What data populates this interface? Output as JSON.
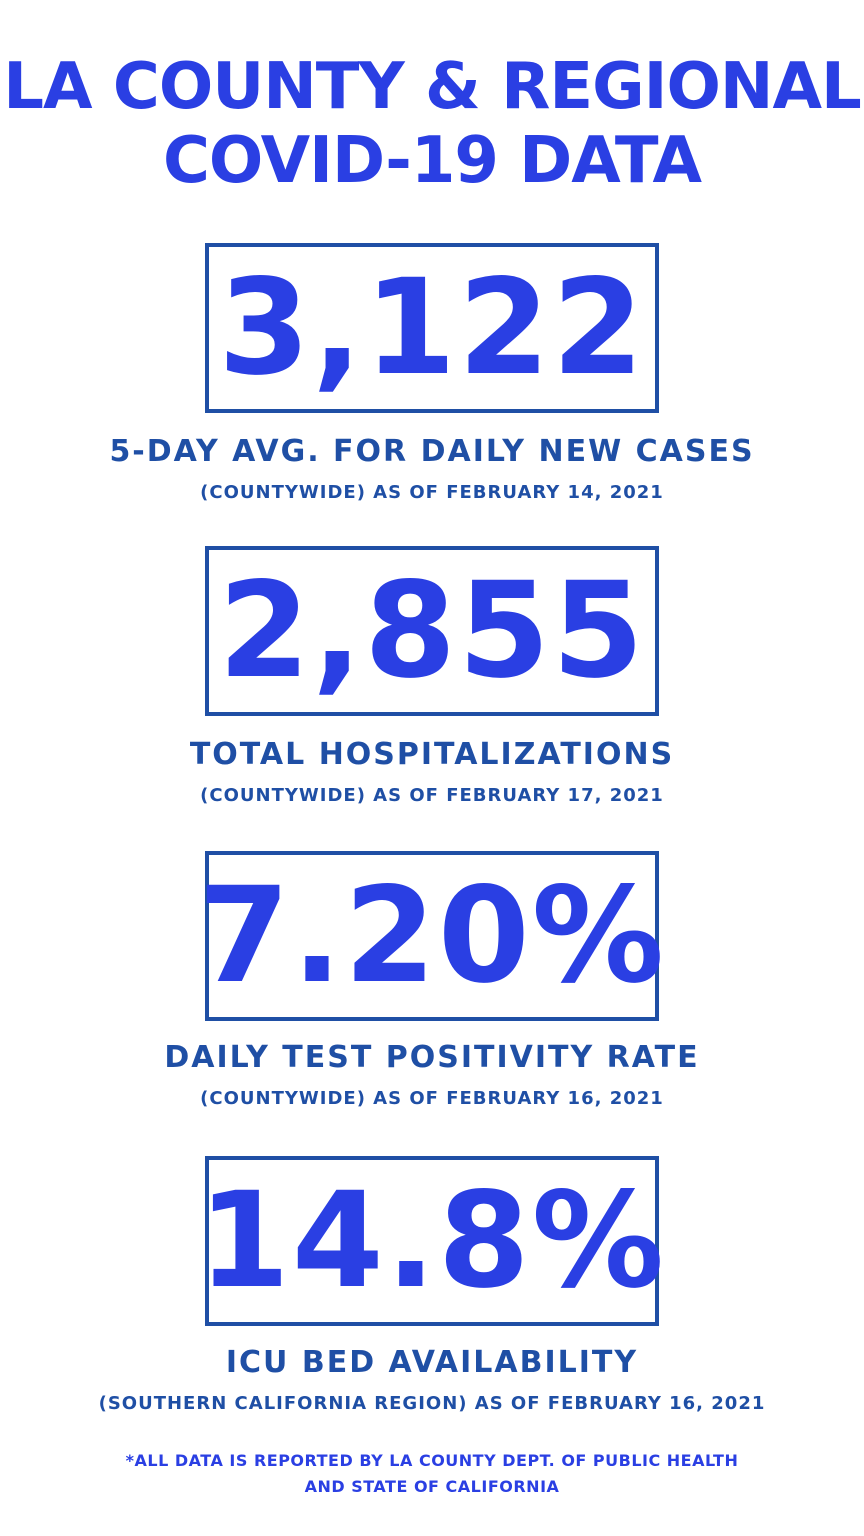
{
  "title": {
    "line1": "LA COUNTY & REGIONAL",
    "line2": "COVID-19 DATA"
  },
  "stats": [
    {
      "value": "3,122",
      "label": "5-DAY AVG. FOR DAILY NEW CASES",
      "sub": "(COUNTYWIDE) AS OF FEBRUARY 14, 2021"
    },
    {
      "value": "2,855",
      "label": "TOTAL HOSPITALIZATIONS",
      "sub": "(COUNTYWIDE) AS OF FEBRUARY 17, 2021"
    },
    {
      "value": "7.20%",
      "label": "DAILY TEST POSITIVITY RATE",
      "sub": "(COUNTYWIDE) AS OF FEBRUARY 16, 2021"
    },
    {
      "value": "14.8%",
      "label": "ICU BED AVAILABILITY",
      "sub": "(SOUTHERN CALIFORNIA REGION) AS OF FEBRUARY 16, 2021"
    }
  ],
  "footnote": {
    "line1": "*ALL DATA IS REPORTED BY LA COUNTY DEPT. OF PUBLIC HEALTH",
    "line2": "AND STATE OF CALIFORNIA"
  },
  "colors": {
    "accent": "#2a3fe3",
    "border_and_label": "#1f4fa5",
    "background": "#ffffff"
  }
}
